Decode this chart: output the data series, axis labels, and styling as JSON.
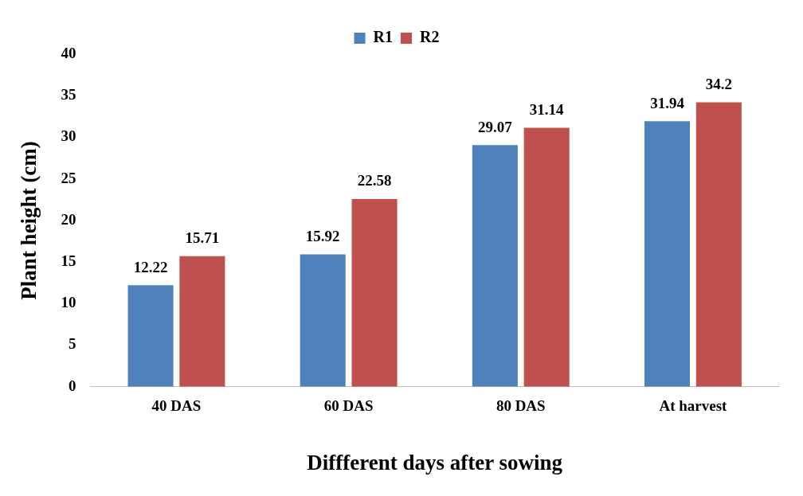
{
  "chart_data": {
    "type": "bar",
    "xlabel": "Diffferent days after sowing",
    "ylabel": "Plant height (cm)",
    "categories": [
      "40 DAS",
      "60 DAS",
      "80 DAS",
      "At harvest"
    ],
    "series": [
      {
        "name": "R1",
        "color": "#4f81bd",
        "values": [
          12.22,
          15.92,
          29.07,
          31.94
        ]
      },
      {
        "name": "R2",
        "color": "#c0504d",
        "values": [
          15.71,
          22.58,
          31.14,
          34.2
        ]
      }
    ],
    "ylim": [
      0,
      40
    ],
    "yticks": [
      0,
      5,
      10,
      15,
      20,
      25,
      30,
      35,
      40
    ],
    "grid": false,
    "legend": "top",
    "data_labels": true
  }
}
